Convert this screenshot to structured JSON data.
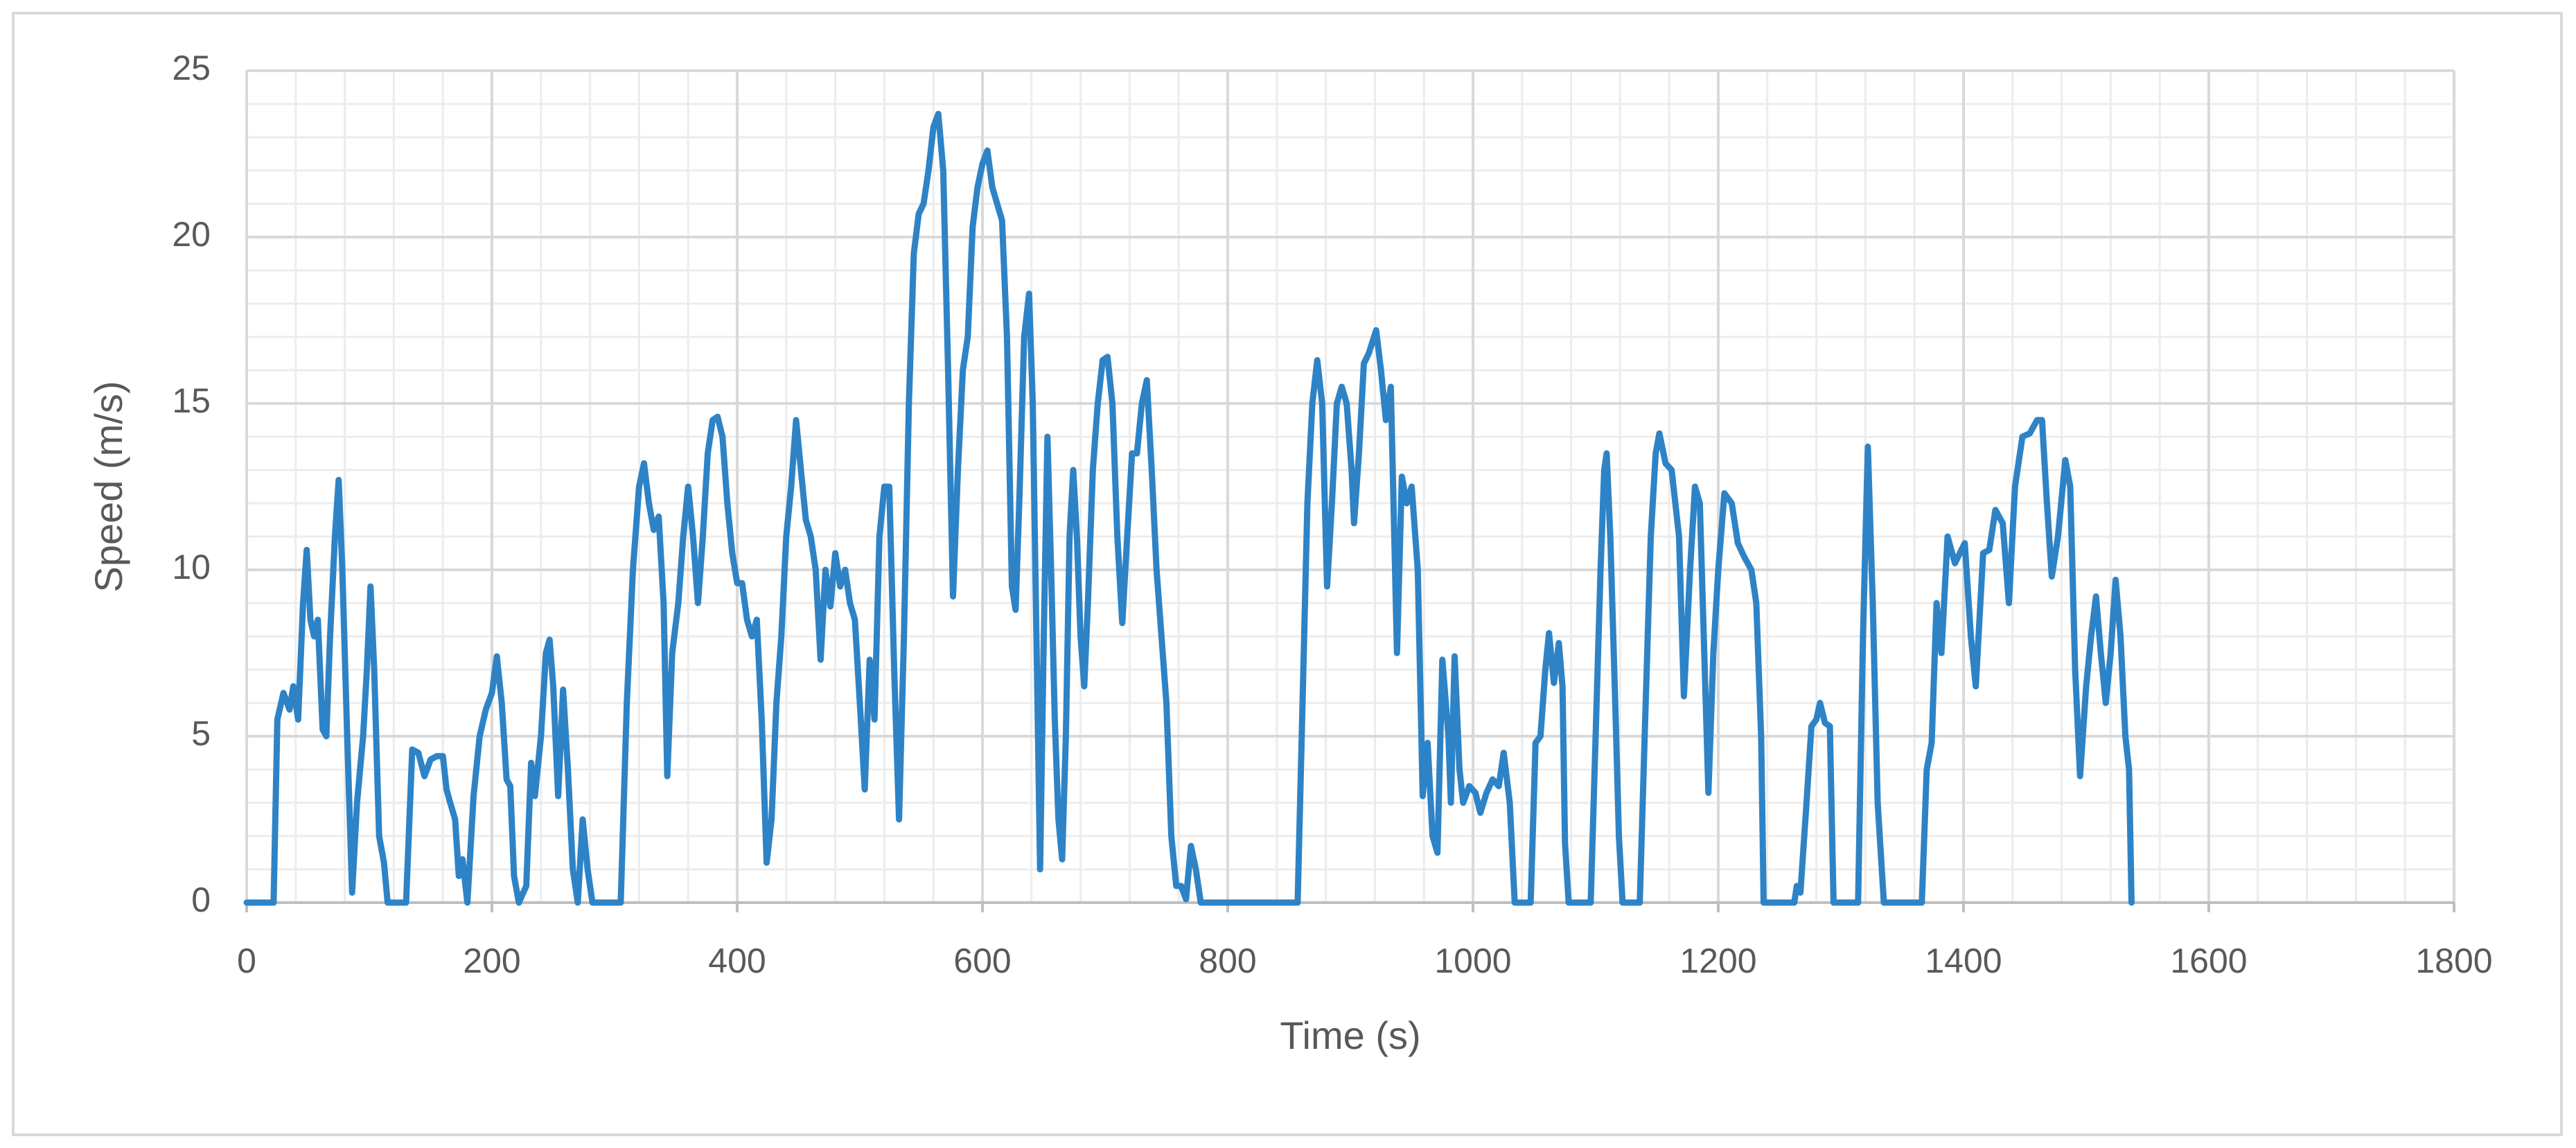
{
  "chart_data": {
    "type": "line",
    "x_label": "Time (s)",
    "y_label": "Speed (m/s)",
    "color": "#2e83c6",
    "grid": true,
    "minor_grid": true,
    "minor_step": {
      "x": 40,
      "y": 1
    },
    "xlim": [
      0,
      1800
    ],
    "xticks": [
      0,
      200,
      400,
      600,
      800,
      1000,
      1200,
      1400,
      1600,
      1800
    ],
    "ylim": [
      0,
      25
    ],
    "yticks": [
      0,
      5,
      10,
      15,
      20,
      25
    ],
    "x": [
      0,
      22,
      25,
      30,
      35,
      38,
      42,
      46,
      49,
      52,
      55,
      58,
      62,
      65,
      68,
      72,
      75,
      78,
      82,
      86,
      90,
      95,
      98,
      101,
      104,
      108,
      112,
      115,
      130,
      135,
      140,
      145,
      150,
      155,
      160,
      163,
      166,
      170,
      173,
      176,
      180,
      185,
      190,
      195,
      200,
      204,
      208,
      212,
      215,
      218,
      222,
      228,
      232,
      235,
      240,
      244,
      247,
      250,
      254,
      258,
      262,
      266,
      270,
      274,
      278,
      282,
      305,
      310,
      315,
      320,
      324,
      328,
      332,
      336,
      340,
      343,
      347,
      352,
      356,
      360,
      364,
      368,
      372,
      376,
      380,
      384,
      388,
      392,
      396,
      400,
      404,
      408,
      412,
      416,
      420,
      424,
      428,
      432,
      436,
      440,
      444,
      448,
      452,
      456,
      460,
      464,
      468,
      472,
      476,
      480,
      484,
      488,
      492,
      496,
      500,
      504,
      508,
      512,
      516,
      520,
      524,
      528,
      532,
      536,
      540,
      544,
      548,
      552,
      556,
      560,
      564,
      568,
      572,
      576,
      580,
      584,
      588,
      592,
      596,
      600,
      604,
      608,
      612,
      616,
      620,
      624,
      627,
      630,
      634,
      638,
      641,
      644,
      647,
      650,
      653,
      656,
      659,
      662,
      665,
      668,
      671,
      674,
      677,
      680,
      683,
      686,
      690,
      694,
      698,
      702,
      706,
      710,
      714,
      718,
      722,
      726,
      730,
      734,
      738,
      742,
      746,
      750,
      754,
      758,
      762,
      766,
      770,
      774,
      778,
      857,
      861,
      865,
      869,
      873,
      877,
      881,
      885,
      889,
      893,
      897,
      901,
      903,
      907,
      911,
      915,
      921,
      925,
      929,
      933,
      938,
      942,
      946,
      950,
      955,
      959,
      963,
      967,
      971,
      975,
      980,
      982,
      985,
      989,
      992,
      997,
      1002,
      1006,
      1011,
      1016,
      1021,
      1025,
      1030,
      1034,
      1047,
      1051,
      1055,
      1059,
      1062,
      1066,
      1070,
      1073,
      1075,
      1078,
      1096,
      1100,
      1104,
      1107,
      1109,
      1112,
      1116,
      1119,
      1122,
      1136,
      1140,
      1145,
      1149,
      1152,
      1157,
      1162,
      1168,
      1172,
      1177,
      1181,
      1185,
      1192,
      1196,
      1200,
      1205,
      1211,
      1216,
      1221,
      1227,
      1231,
      1235,
      1237,
      1262,
      1264,
      1267,
      1272,
      1276,
      1280,
      1283,
      1287,
      1291,
      1294,
      1314,
      1318,
      1322,
      1326,
      1330,
      1335,
      1366,
      1370,
      1374,
      1378,
      1382,
      1387,
      1393,
      1401,
      1406,
      1410,
      1416,
      1421,
      1426,
      1432,
      1437,
      1442,
      1448,
      1454,
      1460,
      1464,
      1468,
      1472,
      1477,
      1483,
      1487,
      1491,
      1495,
      1500,
      1504,
      1508,
      1512,
      1516,
      1520,
      1524,
      1528,
      1532,
      1535,
      1537
    ],
    "values": [
      0,
      0,
      5.5,
      6.3,
      5.8,
      6.5,
      5.5,
      9,
      10.6,
      8.5,
      8,
      8.5,
      5.2,
      5,
      8,
      11,
      12.7,
      10,
      5,
      0.3,
      3,
      5,
      7,
      9.5,
      7,
      2,
      1.2,
      0,
      0,
      4.6,
      4.5,
      3.8,
      4.3,
      4.4,
      4.4,
      3.4,
      3,
      2.5,
      0.8,
      1.3,
      0,
      3.2,
      5,
      5.8,
      6.3,
      7.4,
      6,
      3.7,
      3.5,
      0.8,
      0,
      0.5,
      4.2,
      3.2,
      5,
      7.5,
      7.9,
      6.5,
      3.2,
      6.4,
      4,
      1,
      0,
      2.5,
      1,
      0,
      0,
      6,
      10,
      12.5,
      13.2,
      12,
      11.2,
      11.6,
      9,
      3.8,
      7.5,
      9,
      11,
      12.5,
      11,
      9,
      11,
      13.5,
      14.5,
      14.6,
      14,
      12,
      10.5,
      9.6,
      9.6,
      8.5,
      8,
      8.5,
      5.5,
      1.2,
      2.5,
      6,
      8,
      11,
      12.5,
      14.5,
      13,
      11.5,
      11,
      10,
      7.3,
      10,
      8.9,
      10.5,
      9.5,
      10,
      9,
      8.5,
      6,
      3.4,
      7.3,
      5.5,
      11,
      12.5,
      12.5,
      7,
      2.5,
      8,
      15,
      19.5,
      20.7,
      21,
      22,
      23.3,
      23.7,
      22,
      16,
      9.2,
      13,
      16,
      17,
      20.3,
      21.5,
      22.2,
      22.6,
      21.5,
      21,
      20.5,
      17,
      9.5,
      8.8,
      12,
      17,
      18.3,
      15,
      8,
      1,
      8,
      14,
      10,
      5.5,
      2.5,
      1.3,
      5,
      11,
      13,
      11,
      8,
      6.5,
      9,
      13,
      15,
      16.3,
      16.4,
      15,
      11,
      8.4,
      11,
      13.5,
      13.5,
      15,
      15.7,
      13,
      10,
      8,
      6,
      2,
      0.5,
      0.5,
      0.1,
      1.7,
      1,
      0,
      0,
      6,
      12,
      15,
      16.3,
      15,
      9.5,
      12,
      15,
      15.5,
      15,
      13,
      11.4,
      13.5,
      16.2,
      16.5,
      17.2,
      16,
      14.5,
      15.5,
      7.5,
      12.8,
      12,
      12.5,
      10,
      3.2,
      4.8,
      2,
      1.5,
      7.3,
      5,
      3,
      7.4,
      4,
      3,
      3.5,
      3.3,
      2.7,
      3.3,
      3.7,
      3.5,
      4.5,
      3,
      0,
      0,
      4.8,
      5,
      7,
      8.1,
      6.6,
      7.8,
      6.5,
      1.8,
      0,
      0,
      5,
      10,
      13,
      13.5,
      11,
      6,
      2,
      0,
      0,
      5,
      11,
      13.5,
      14.1,
      13.2,
      13,
      11,
      6.2,
      10,
      12.5,
      12,
      3.3,
      7.5,
      10,
      12.3,
      12,
      10.8,
      10.4,
      10,
      9,
      5,
      0,
      0,
      0.5,
      0.3,
      3,
      5.3,
      5.5,
      6,
      5.4,
      5.3,
      0,
      0,
      8,
      13.7,
      9,
      3,
      0,
      0,
      4,
      4.8,
      9,
      7.5,
      11,
      10.2,
      10.8,
      8,
      6.5,
      10.5,
      10.6,
      11.8,
      11.4,
      9,
      12.5,
      14,
      14.1,
      14.5,
      14.5,
      12,
      9.8,
      11,
      13.3,
      12.5,
      7,
      3.8,
      6.5,
      8,
      9.2,
      7.5,
      6,
      7.5,
      9.7,
      8,
      5,
      4,
      0
    ]
  }
}
